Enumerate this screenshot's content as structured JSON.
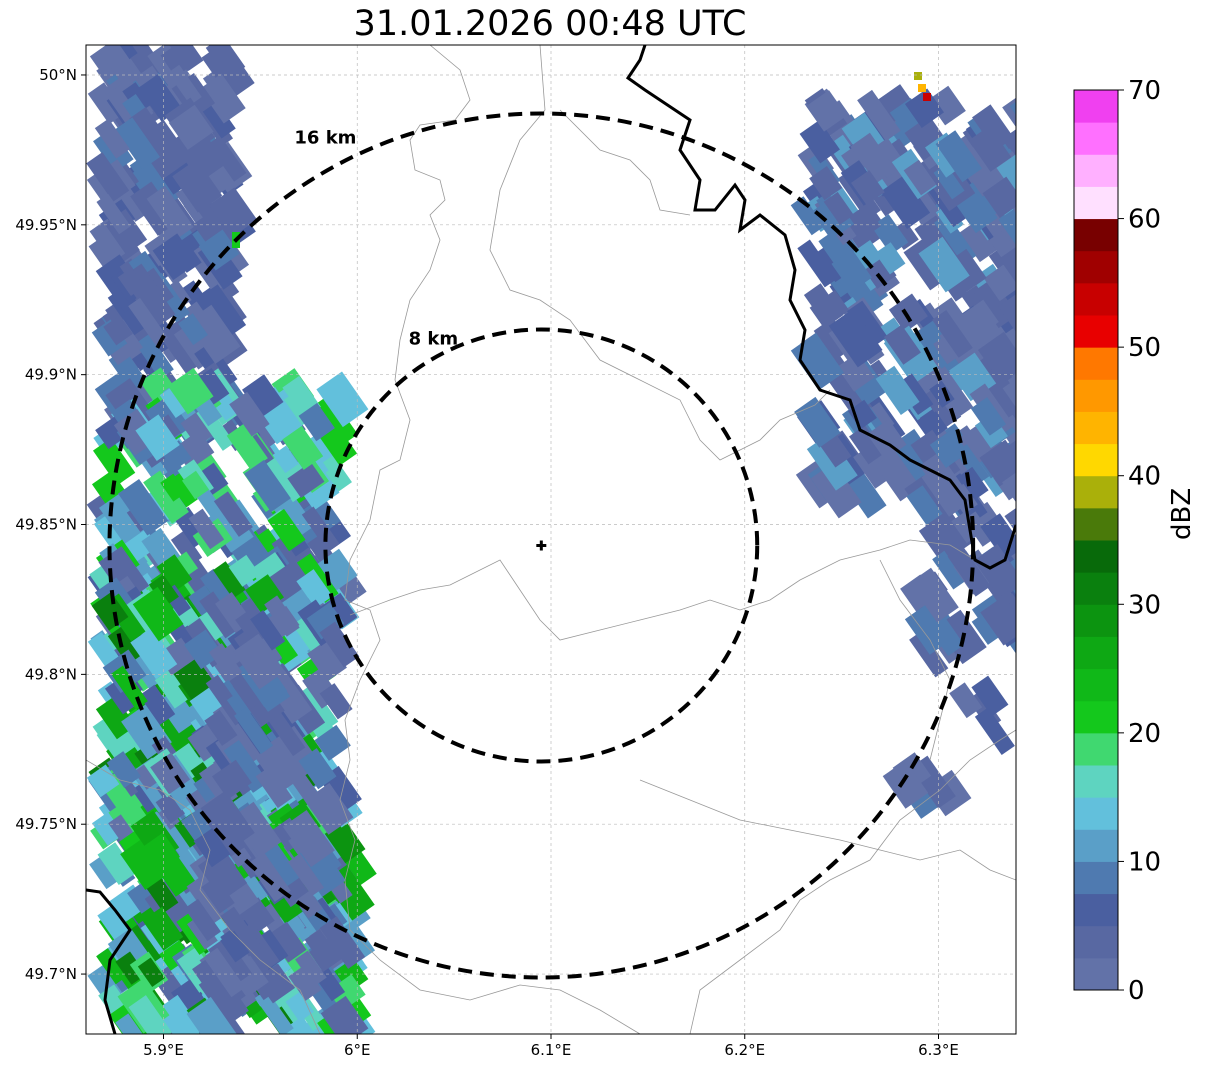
{
  "title": "31.01.2026 00:48 UTC",
  "map": {
    "lon_range": [
      5.86,
      6.34
    ],
    "lat_range": [
      49.68,
      50.01
    ],
    "x_ticks": [
      {
        "value": 5.9,
        "label": "5.9°E"
      },
      {
        "value": 6.0,
        "label": "6°E"
      },
      {
        "value": 6.1,
        "label": "6.1°E"
      },
      {
        "value": 6.2,
        "label": "6.2°E"
      },
      {
        "value": 6.3,
        "label": "6.3°E"
      }
    ],
    "y_ticks": [
      {
        "value": 50.0,
        "label": "50°N"
      },
      {
        "value": 49.95,
        "label": "49.95°N"
      },
      {
        "value": 49.9,
        "label": "49.9°N"
      },
      {
        "value": 49.85,
        "label": "49.85°N"
      },
      {
        "value": 49.8,
        "label": "49.8°N"
      },
      {
        "value": 49.75,
        "label": "49.75°N"
      },
      {
        "value": 49.7,
        "label": "49.7°N"
      }
    ],
    "grid": true,
    "radar_site": {
      "lon": 6.095,
      "lat": 49.843
    },
    "range_rings": [
      {
        "km": 8,
        "label": "8 km"
      },
      {
        "km": 16,
        "label": "16 km"
      }
    ]
  },
  "colorbar": {
    "label": "dBZ",
    "min": 0,
    "max": 70,
    "ticks": [
      "0",
      "10",
      "20",
      "30",
      "40",
      "50",
      "60",
      "70"
    ],
    "colors": [
      "#6272a8",
      "#5868a2",
      "#4a5fa0",
      "#4f7ab0",
      "#5a9fc8",
      "#62c0dc",
      "#5ed4c0",
      "#40d870",
      "#14c81c",
      "#10b818",
      "#0ea814",
      "#0c9410",
      "#0a800e",
      "#086a0a",
      "#4a7a0a",
      "#aab00a",
      "#ffd800",
      "#ffb400",
      "#ff9800",
      "#ff7800",
      "#e80000",
      "#c80000",
      "#a00000",
      "#780000",
      "#ffe0ff",
      "#ffb0ff",
      "#ff70ff",
      "#f040f0"
    ]
  }
}
